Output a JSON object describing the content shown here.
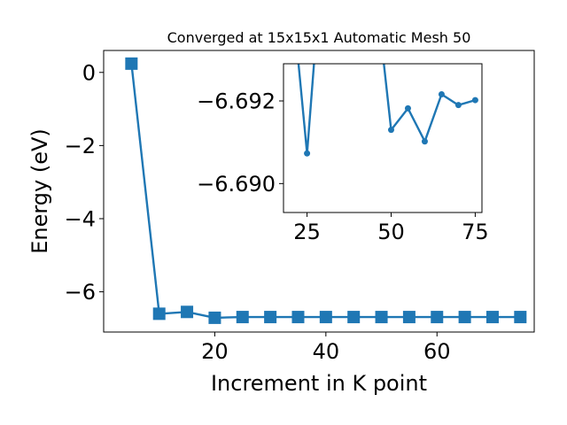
{
  "chart_data": [
    {
      "type": "line",
      "title": "Converged at 15x15x1 Automatic Mesh 50",
      "xlabel": "Increment in K point",
      "ylabel": "Energy (eV)",
      "xlim": [
        0,
        77.5
      ],
      "ylim": [
        -7.1,
        0.6
      ],
      "xticks": [
        20,
        40,
        60
      ],
      "yticks": [
        0,
        -2,
        -4,
        -6
      ],
      "xtick_labels": [
        "20",
        "40",
        "60"
      ],
      "ytick_labels": [
        "0",
        "−2",
        "−4",
        "−6"
      ],
      "marker": "square",
      "grid": false,
      "color": "#1f77b4",
      "x": [
        5,
        10,
        15,
        20,
        25,
        30,
        35,
        40,
        45,
        50,
        55,
        60,
        65,
        70,
        75
      ],
      "y": [
        0.24,
        -6.6,
        -6.55,
        -6.71,
        -6.69,
        -6.69,
        -6.69,
        -6.69,
        -6.69,
        -6.69,
        -6.69,
        -6.69,
        -6.69,
        -6.69,
        -6.69
      ]
    },
    {
      "type": "line",
      "title": "",
      "xlabel": "",
      "ylabel": "",
      "xlim": [
        18,
        77
      ],
      "ylim": [
        -6.6893,
        -6.6929
      ],
      "xticks": [
        25,
        50,
        75
      ],
      "yticks": [
        -6.692,
        -6.69
      ],
      "xtick_labels": [
        "25",
        "50",
        "75"
      ],
      "ytick_labels": [
        "−6.692",
        "−6.690"
      ],
      "marker": "circle",
      "grid": false,
      "color": "#1f77b4",
      "x": [
        20,
        25,
        30,
        45,
        50,
        55,
        60,
        65,
        70,
        75
      ],
      "y": [
        -6.695,
        -6.69073,
        -6.696,
        -6.695,
        -6.6913,
        -6.69182,
        -6.69102,
        -6.69216,
        -6.6919,
        -6.69202
      ],
      "visible_points_x": [
        25,
        45,
        50,
        55,
        60,
        65,
        70,
        75
      ]
    }
  ]
}
